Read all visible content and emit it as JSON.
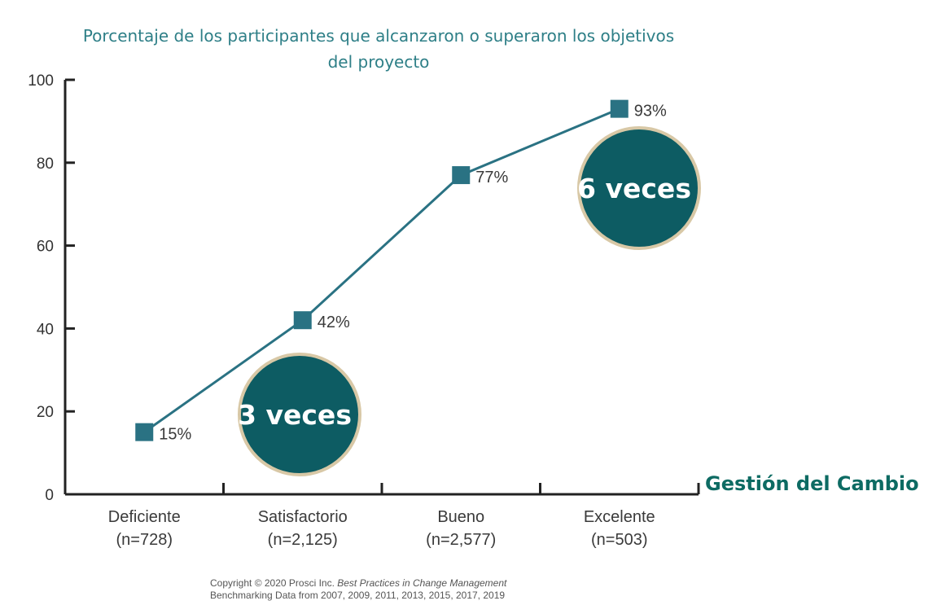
{
  "chart_data": {
    "type": "line",
    "title": "Porcentaje de los participantes que alcanzaron o superaron los objetivos del proyecto",
    "title_lines": [
      "Porcentaje de los participantes que alcanzaron o superaron los objetivos",
      "del proyecto"
    ],
    "xlabel": "Gestión del Cambio",
    "ylabel": "",
    "categories": [
      "Deficiente",
      "Satisfactorio",
      "Bueno",
      "Excelente"
    ],
    "category_counts": [
      "(n=728)",
      "(n=2,125)",
      "(n=2,577)",
      "(n=503)"
    ],
    "values": [
      15,
      42,
      77,
      93
    ],
    "data_labels": [
      "15%",
      "42%",
      "77%",
      "93%"
    ],
    "ylim": [
      0,
      100
    ],
    "yticks": [
      0,
      20,
      40,
      60,
      80,
      100
    ],
    "grid": false,
    "annotations": [
      "3 veces",
      "6 veces"
    ],
    "colors": {
      "line": "#2a7283",
      "marker": "#2a7283",
      "title": "#2e7f87",
      "xlabel": "#0d6b63",
      "circle": "#0d5c63",
      "circle_border": "#d8c8a6"
    }
  },
  "footer": {
    "line1_plain": "Copyright © 2020 Prosci Inc. ",
    "line1_italic": "Best Practices in Change Management",
    "line2": "Benchmarking Data from 2007, 2009, 2011, 2013, 2015, 2017, 2019"
  }
}
